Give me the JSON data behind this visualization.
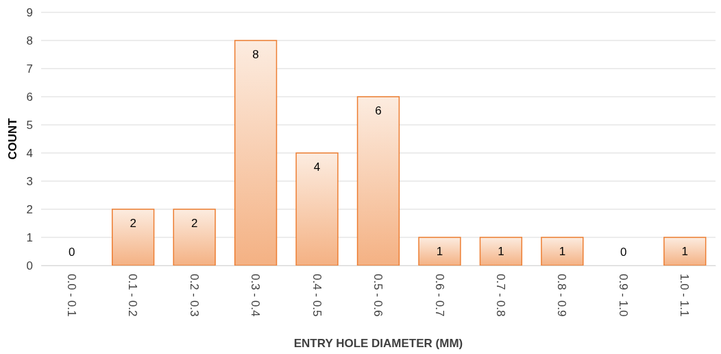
{
  "chart_data": {
    "type": "bar",
    "xlabel": "ENTRY HOLE DIAMETER (MM)",
    "ylabel": "COUNT",
    "categories": [
      "0.0 - 0.1",
      "0.1 - 0.2",
      "0.2 - 0.3",
      "0.3 - 0.4",
      "0.4 - 0.5",
      "0.5 - 0.6",
      "0.6 - 0.7",
      "0.7 - 0.8",
      "0.8 - 0.9",
      "0.9 - 1.0",
      "1.0 - 1.1"
    ],
    "values": [
      0,
      2,
      2,
      8,
      4,
      6,
      1,
      1,
      1,
      0,
      1
    ],
    "color": "#ed7d31",
    "ylim": [
      0,
      9
    ],
    "yticks": [
      0,
      1,
      2,
      3,
      4,
      5,
      6,
      7,
      8,
      9
    ],
    "grid": "y",
    "data_labels": true
  }
}
